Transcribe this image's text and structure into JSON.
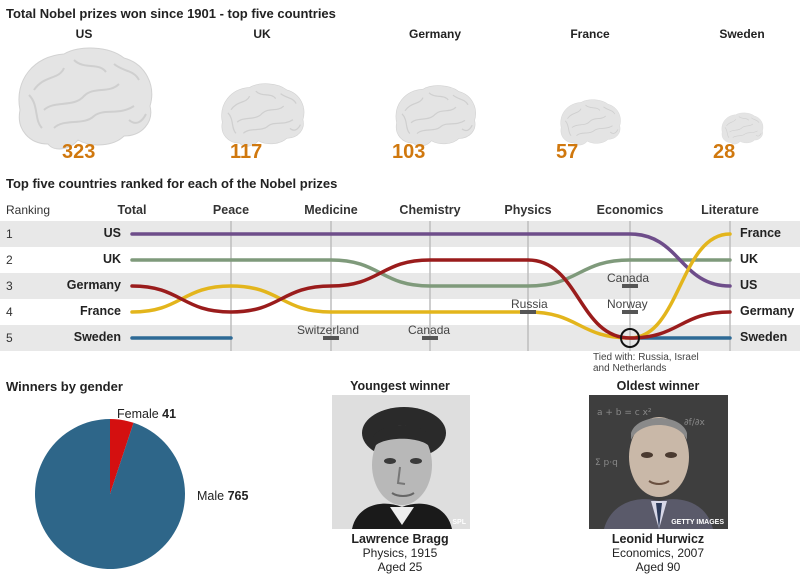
{
  "header": {
    "title": "Total Nobel prizes won since 1901 - top five countries"
  },
  "totals": [
    {
      "country": "US",
      "value": "323",
      "scale": 1.0
    },
    {
      "country": "UK",
      "value": "117",
      "scale": 0.62
    },
    {
      "country": "Germany",
      "value": "103",
      "scale": 0.6
    },
    {
      "country": "France",
      "value": "57",
      "scale": 0.45
    },
    {
      "country": "Sweden",
      "value": "28",
      "scale": 0.31
    }
  ],
  "ranking": {
    "title": "Top five countries ranked for each of the Nobel prizes",
    "ranking_label": "Ranking",
    "ranks": [
      "1",
      "2",
      "3",
      "4",
      "5"
    ],
    "columns": [
      "Total",
      "Peace",
      "Medicine",
      "Chemistry",
      "Physics",
      "Economics",
      "Literature"
    ],
    "left_labels": [
      "US",
      "UK",
      "Germany",
      "France",
      "Sweden"
    ],
    "right_labels": [
      "France",
      "UK",
      "US",
      "Germany",
      "Sweden"
    ],
    "annotations": {
      "switzerland": "Switzerland",
      "canada_chem": "Canada",
      "russia": "Russia",
      "canada_econ": "Canada",
      "norway": "Norway",
      "tied_line1": "Tied with: Russia, Israel",
      "tied_line2": "and Netherlands"
    }
  },
  "chart_data": [
    {
      "type": "bar",
      "title": "Total Nobel prizes won since 1901 - top five countries",
      "categories": [
        "US",
        "UK",
        "Germany",
        "France",
        "Sweden"
      ],
      "values": [
        323,
        117,
        103,
        57,
        28
      ]
    },
    {
      "type": "line",
      "title": "Top five countries ranked for each of the Nobel prizes",
      "ylabel": "Ranking",
      "x": [
        "Total",
        "Peace",
        "Medicine",
        "Chemistry",
        "Physics",
        "Economics",
        "Literature"
      ],
      "y_inverted": true,
      "ylim": [
        1,
        5
      ],
      "series": [
        {
          "name": "US",
          "color": "#6e4d8a",
          "values": [
            1,
            1,
            1,
            1,
            1,
            1,
            3
          ]
        },
        {
          "name": "UK",
          "color": "#7f9a7b",
          "values": [
            2,
            2,
            2,
            3,
            3,
            2,
            2
          ]
        },
        {
          "name": "Germany",
          "color": "#9a1c1c",
          "values": [
            3,
            4,
            3,
            2,
            2,
            5,
            4
          ]
        },
        {
          "name": "France",
          "color": "#e3b51c",
          "values": [
            4,
            3,
            4,
            4,
            4,
            5,
            1
          ]
        },
        {
          "name": "Sweden",
          "color": "#2e6a96",
          "values": [
            5,
            5,
            null,
            null,
            null,
            5,
            5
          ]
        }
      ]
    },
    {
      "type": "pie",
      "title": "Winners by gender",
      "labels": [
        "Female",
        "Male"
      ],
      "values": [
        41,
        765
      ],
      "colors": [
        "#d41010",
        "#2e6689"
      ]
    }
  ],
  "gender": {
    "title": "Winners by gender",
    "female_label": "Female",
    "female_value": "41",
    "male_label": "Male",
    "male_value": "765"
  },
  "youngest": {
    "title": "Youngest winner",
    "name": "Lawrence Bragg",
    "field": "Physics, 1915",
    "age": "Aged 25",
    "credit": "SPL"
  },
  "oldest": {
    "title": "Oldest winner",
    "name": "Leonid Hurwicz",
    "field": "Economics, 2007",
    "age": "Aged 90",
    "credit": "GETTY IMAGES"
  }
}
